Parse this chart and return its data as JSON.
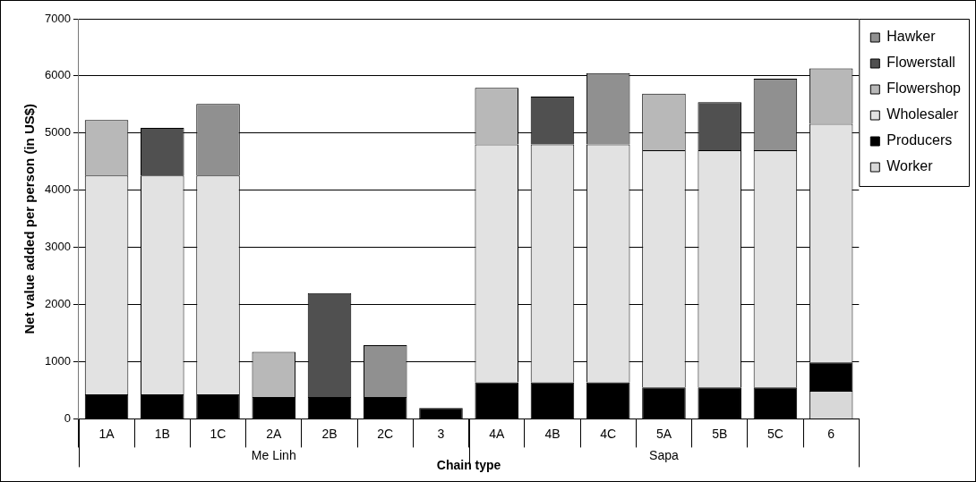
{
  "chart_data": {
    "type": "bar",
    "stacked": true,
    "xlabel": "Chain type",
    "ylabel": "Net value added per person (in US$)",
    "categories": [
      "1A",
      "1B",
      "1C",
      "2A",
      "2B",
      "2C",
      "3",
      "4A",
      "4B",
      "4C",
      "5A",
      "5B",
      "5C",
      "6"
    ],
    "ylim": [
      0,
      7000
    ],
    "yticks": [
      0,
      1000,
      2000,
      3000,
      4000,
      5000,
      6000,
      7000
    ],
    "grid": "y",
    "legend": "right",
    "series": [
      {
        "name": "Worker",
        "color": "#d8d8d8",
        "values": [
          null,
          null,
          null,
          null,
          null,
          null,
          null,
          null,
          null,
          null,
          null,
          null,
          null,
          490
        ]
      },
      {
        "name": "Producers",
        "color": "#000000",
        "values": [
          430,
          430,
          430,
          380,
          380,
          380,
          190,
          640,
          640,
          640,
          550,
          550,
          550,
          500
        ]
      },
      {
        "name": "Wholesaler",
        "color": "#e2e2e2",
        "values": [
          3830,
          3830,
          3830,
          null,
          null,
          null,
          null,
          4160,
          4160,
          4160,
          4150,
          4150,
          4150,
          4170
        ]
      },
      {
        "name": "Flowershop",
        "color": "#b8b8b8",
        "values": [
          970,
          null,
          null,
          790,
          null,
          null,
          null,
          990,
          null,
          null,
          990,
          null,
          null,
          970
        ]
      },
      {
        "name": "Flowerstall",
        "color": "#505050",
        "values": [
          null,
          830,
          null,
          null,
          1820,
          null,
          null,
          null,
          840,
          null,
          null,
          840,
          null,
          null
        ]
      },
      {
        "name": "Hawker",
        "color": "#909090",
        "values": [
          null,
          null,
          1250,
          null,
          null,
          910,
          null,
          null,
          null,
          1250,
          null,
          null,
          1250,
          null
        ]
      }
    ],
    "annotations": [
      "Me Linh",
      "Sapa"
    ]
  }
}
